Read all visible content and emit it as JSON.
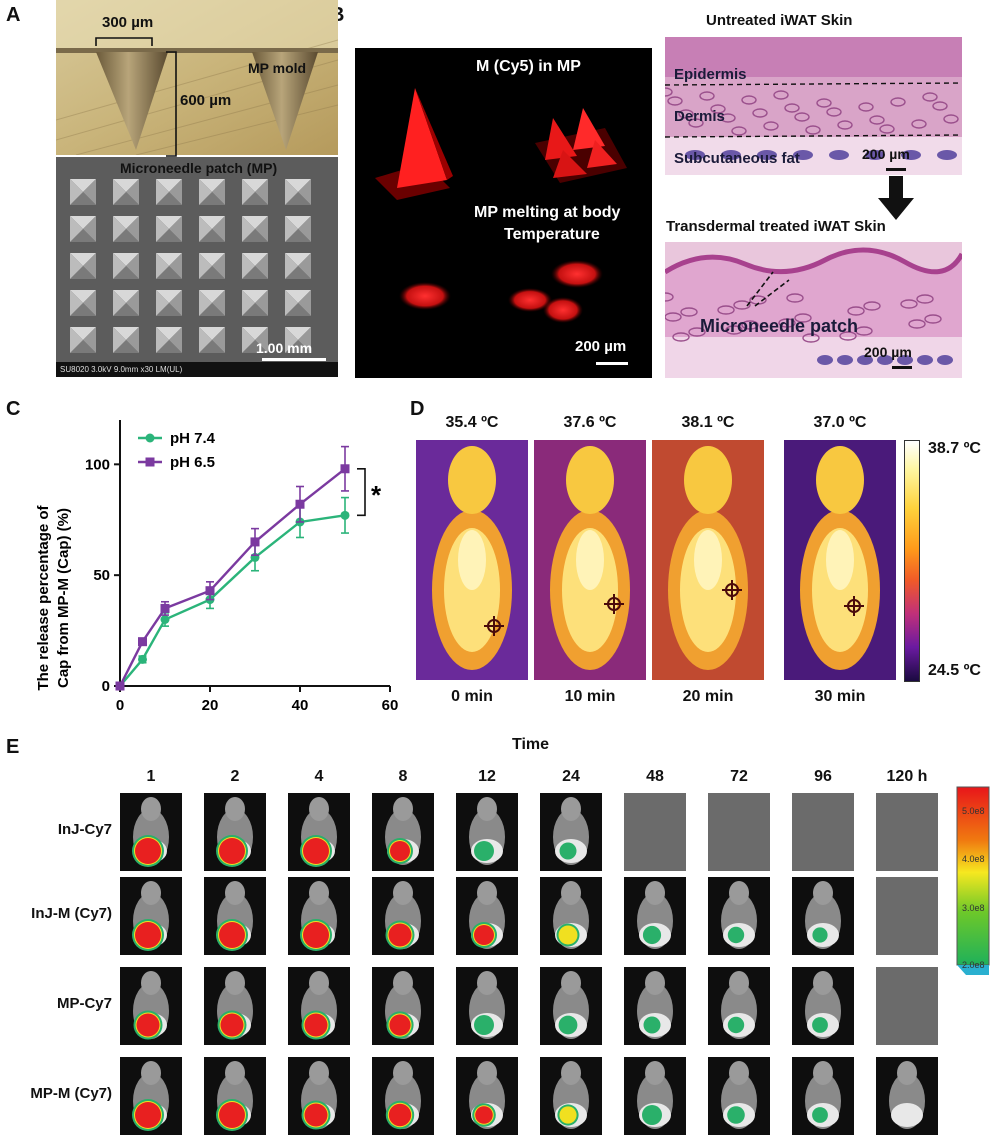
{
  "panels": {
    "a": "A",
    "b": "B",
    "c": "C",
    "d": "D",
    "e": "E"
  },
  "panel_a": {
    "width_label": "300 µm",
    "height_label": "600 µm",
    "mold_label": "MP mold",
    "patch_label": "Microneedle patch (MP)",
    "scale_label": "1.00 mm",
    "sem_footer": "SU8020 3.0kV 9.0mm x30 LM(UL)"
  },
  "panel_b": {
    "fluor_title": "M (Cy5) in MP",
    "melt_label_1": "MP melting at body",
    "melt_label_2": "Temperature",
    "fluor_scale": "200 µm",
    "untreated_title": "Untreated iWAT Skin",
    "layer_epidermis": "Epidermis",
    "layer_dermis": "Dermis",
    "layer_fat": "Subcutaneous fat",
    "untreated_scale": "200 µm",
    "treated_title": "Transdermal treated iWAT Skin",
    "treated_label": "Microneedle patch",
    "treated_scale": "200 µm"
  },
  "chart_data": {
    "type": "line",
    "ylabel_line1": "The release percentage of",
    "ylabel_line2": "Cap from MP-M (Cap) (%)",
    "xlabel": "",
    "x": [
      0,
      5,
      10,
      20,
      30,
      40,
      50
    ],
    "xlim": [
      0,
      60
    ],
    "ylim": [
      0,
      120
    ],
    "xticks": [
      0,
      20,
      40,
      60
    ],
    "yticks": [
      0,
      50,
      100
    ],
    "series": [
      {
        "name": "pH 7.4",
        "color": "#2bb47a",
        "values": [
          0,
          12,
          30,
          39,
          58,
          74,
          77
        ],
        "errors": [
          0,
          1.5,
          3,
          4,
          6,
          7,
          8
        ]
      },
      {
        "name": "pH 6.5",
        "color": "#7b3aa0",
        "values": [
          0,
          20,
          35,
          43,
          65,
          82,
          98
        ],
        "errors": [
          0,
          1.5,
          3,
          4,
          6,
          8,
          10
        ]
      }
    ],
    "significance": "*"
  },
  "panel_d": {
    "temps": [
      "35.4 ºC",
      "37.6 ºC",
      "38.1 ºC",
      "37.0 ºC"
    ],
    "times": [
      "0 min",
      "10 min",
      "20 min",
      "30 min"
    ],
    "scale_max": "38.7 ºC",
    "scale_min": "24.5 ºC"
  },
  "panel_e": {
    "time_title": "Time",
    "columns": [
      "1",
      "2",
      "4",
      "8",
      "12",
      "24",
      "48",
      "72",
      "96",
      "120 h"
    ],
    "rows": [
      {
        "label": "InJ-Cy7",
        "signal": [
          3,
          3,
          3,
          2,
          1,
          0.5,
          -1,
          -1,
          -1,
          -1
        ]
      },
      {
        "label": "InJ-M (Cy7)",
        "signal": [
          3,
          3,
          3,
          2.5,
          2,
          1.5,
          0.7,
          0.4,
          0.2,
          -1
        ]
      },
      {
        "label": "MP-Cy7",
        "signal": [
          2.5,
          2.5,
          2.5,
          2.2,
          1,
          0.8,
          0.5,
          0.4,
          0.3,
          -1
        ]
      },
      {
        "label": "MP-M (Cy7)",
        "signal": [
          3,
          3,
          2.5,
          2.4,
          1.6,
          1.2,
          1,
          0.6,
          0.3,
          0
        ]
      }
    ],
    "scale_ticks": [
      "5.0e8",
      "4.0e8",
      "3.0e8",
      "2.0e8"
    ]
  }
}
